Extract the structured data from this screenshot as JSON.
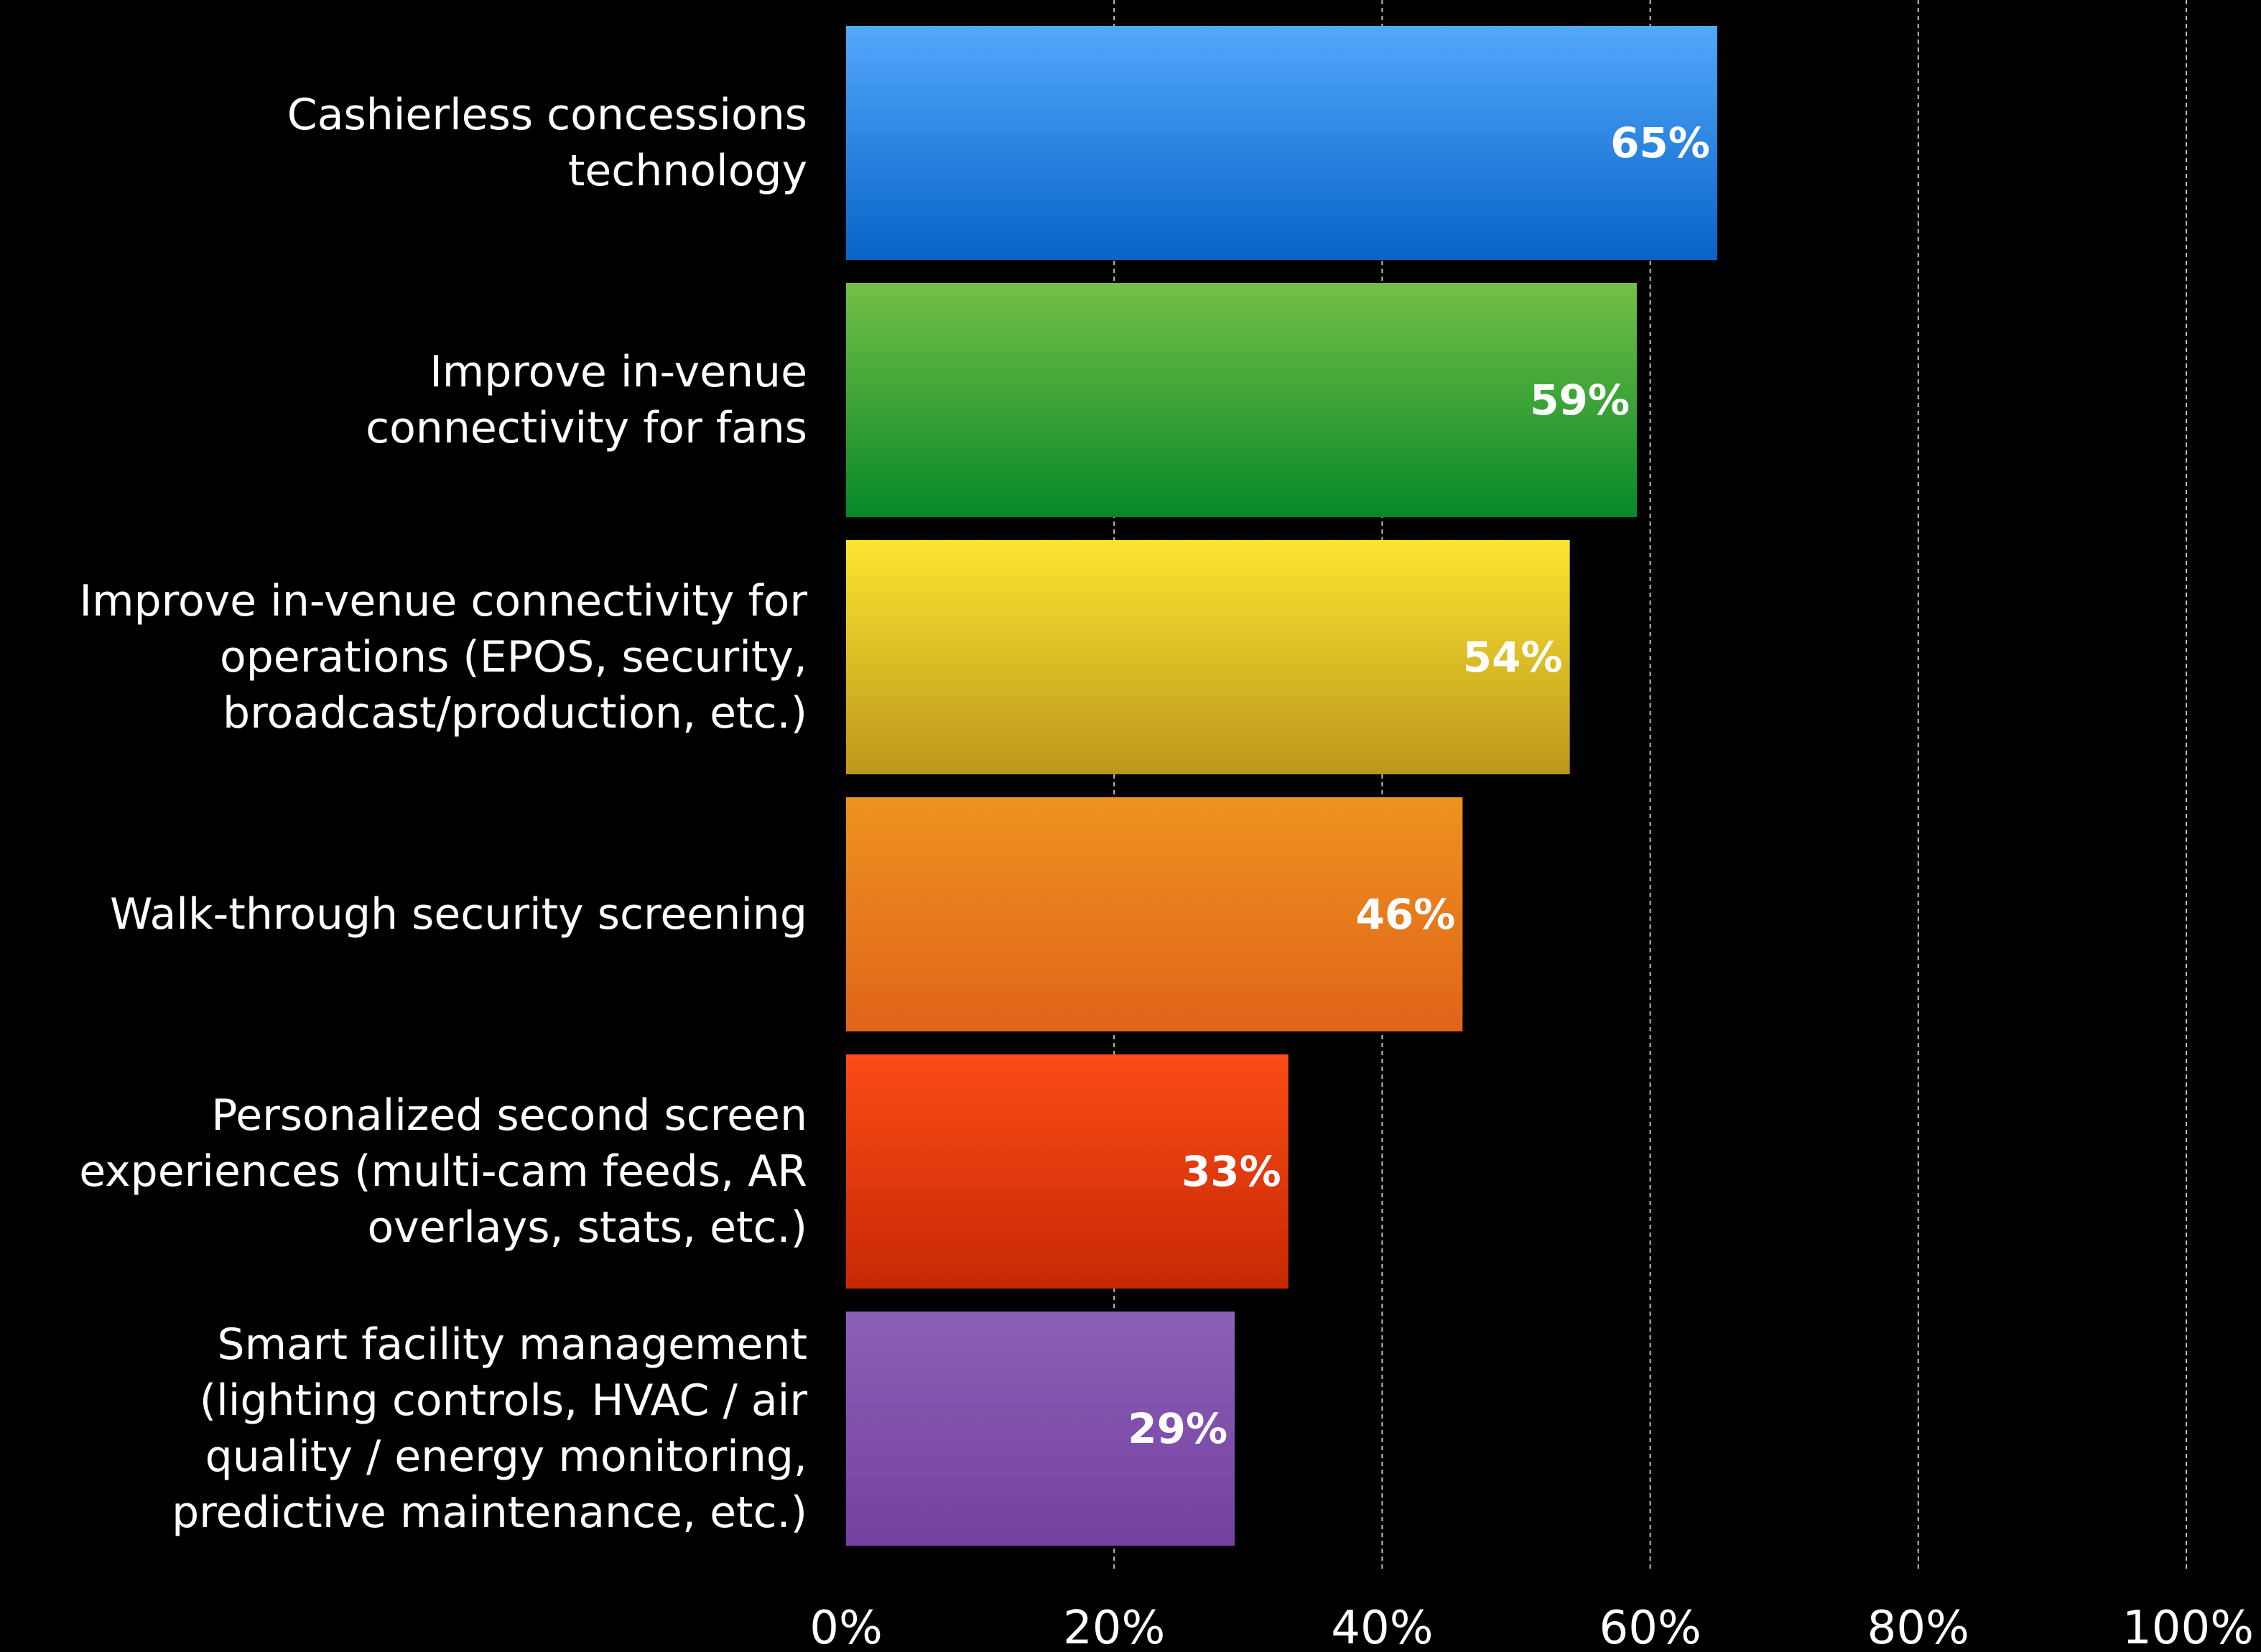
{
  "chart_data": {
    "type": "bar",
    "orientation": "horizontal",
    "categories": [
      [
        "Cashierless concessions",
        "technology"
      ],
      [
        "Improve in-venue",
        "connectivity for fans"
      ],
      [
        "Improve in-venue connectivity for",
        "operations (EPOS, security,",
        "broadcast/production, etc.)"
      ],
      [
        "Walk-through security screening"
      ],
      [
        "Personalized second screen",
        "experiences (multi-cam feeds, AR",
        "overlays, stats, etc.)"
      ],
      [
        "Smart facility management",
        "(lighting controls, HVAC / air",
        "quality / energy monitoring,",
        "predictive maintenance, etc.)"
      ]
    ],
    "values": [
      65,
      59,
      54,
      46,
      33,
      29
    ],
    "value_labels": [
      "65%",
      "59%",
      "54%",
      "46%",
      "33%",
      "29%"
    ],
    "bar_colors": [
      [
        "#52a8fb",
        "#0863c8"
      ],
      [
        "#74c046",
        "#068828"
      ],
      [
        "#fbe530",
        "#bd961c"
      ],
      [
        "#ee921f",
        "#e0641a"
      ],
      [
        "#fb4c16",
        "#c72804"
      ],
      [
        "#8b60b7",
        "#7540a0"
      ]
    ],
    "xlim": [
      0,
      100
    ],
    "x_ticks": [
      0,
      20,
      40,
      60,
      80,
      100
    ],
    "x_tick_labels": [
      "0%",
      "20%",
      "40%",
      "60%",
      "80%",
      "100%"
    ],
    "grid": "vertical dashed",
    "background": "#000000",
    "text_color": "#ffffff"
  }
}
